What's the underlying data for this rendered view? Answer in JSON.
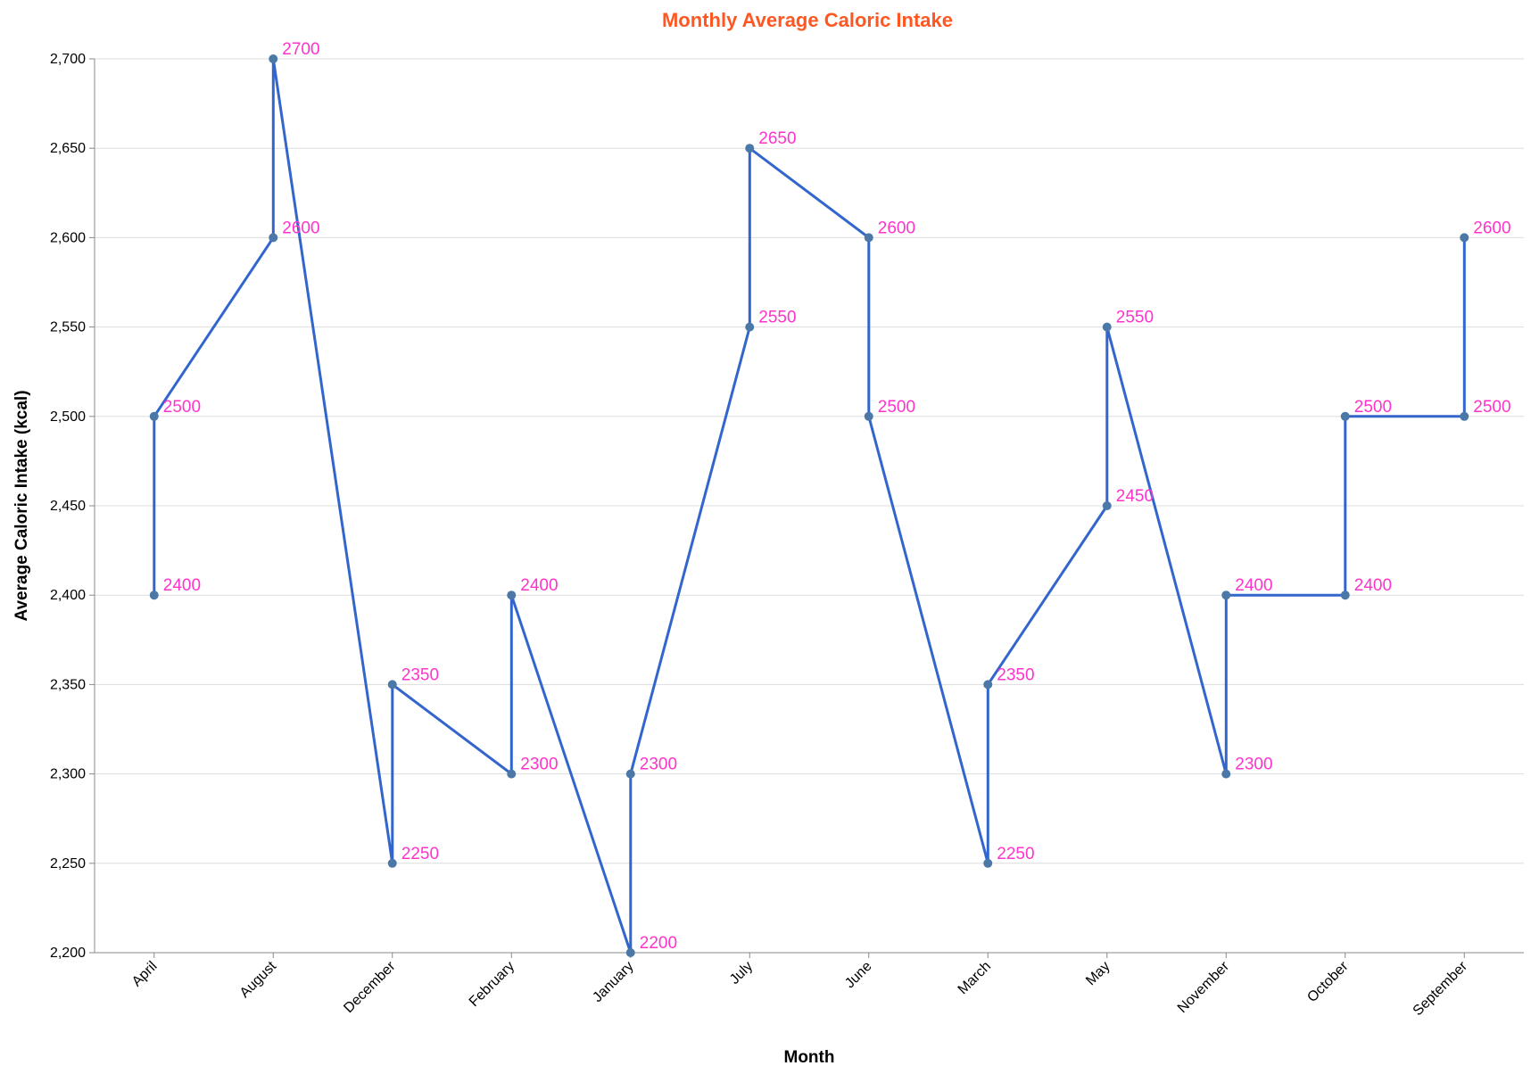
{
  "chart_data": {
    "type": "line",
    "title": "Monthly Average Caloric Intake",
    "xlabel": "Month",
    "ylabel": "Average Caloric Intake (kcal)",
    "ylim": [
      2200,
      2700
    ],
    "y_ticks": [
      2200,
      2250,
      2300,
      2350,
      2400,
      2450,
      2500,
      2550,
      2600,
      2650,
      2700
    ],
    "y_tick_labels": [
      "2,200",
      "2,250",
      "2,300",
      "2,350",
      "2,400",
      "2,450",
      "2,500",
      "2,550",
      "2,600",
      "2,650",
      "2,700"
    ],
    "categories": [
      "April",
      "August",
      "December",
      "February",
      "January",
      "July",
      "June",
      "March",
      "May",
      "November",
      "October",
      "September"
    ],
    "grid": "horizontal",
    "colors": {
      "line": "#3366cc",
      "point": "#4c78a8",
      "label": "#ff33cc",
      "title": "#ff5722",
      "grid": "#dddddd",
      "axis": "#888888"
    },
    "points": [
      {
        "x": "April",
        "y": 2400,
        "label": "2400"
      },
      {
        "x": "April",
        "y": 2500,
        "label": "2500"
      },
      {
        "x": "August",
        "y": 2600,
        "label": "2600"
      },
      {
        "x": "August",
        "y": 2700,
        "label": "2700"
      },
      {
        "x": "December",
        "y": 2250,
        "label": "2250"
      },
      {
        "x": "December",
        "y": 2350,
        "label": "2350"
      },
      {
        "x": "February",
        "y": 2300,
        "label": "2300"
      },
      {
        "x": "February",
        "y": 2400,
        "label": "2400"
      },
      {
        "x": "January",
        "y": 2200,
        "label": "2200"
      },
      {
        "x": "January",
        "y": 2300,
        "label": "2300"
      },
      {
        "x": "July",
        "y": 2550,
        "label": "2550"
      },
      {
        "x": "July",
        "y": 2650,
        "label": "2650"
      },
      {
        "x": "June",
        "y": 2600,
        "label": "2600"
      },
      {
        "x": "June",
        "y": 2500,
        "label": "2500"
      },
      {
        "x": "March",
        "y": 2250,
        "label": "2250"
      },
      {
        "x": "March",
        "y": 2350,
        "label": "2350"
      },
      {
        "x": "May",
        "y": 2450,
        "label": "2450"
      },
      {
        "x": "May",
        "y": 2550,
        "label": "2550"
      },
      {
        "x": "November",
        "y": 2300,
        "label": "2300"
      },
      {
        "x": "November",
        "y": 2400,
        "label": "2400"
      },
      {
        "x": "October",
        "y": 2400,
        "label": "2400"
      },
      {
        "x": "October",
        "y": 2500,
        "label": "2500"
      },
      {
        "x": "September",
        "y": 2500,
        "label": "2500"
      },
      {
        "x": "September",
        "y": 2600,
        "label": "2600"
      }
    ]
  }
}
